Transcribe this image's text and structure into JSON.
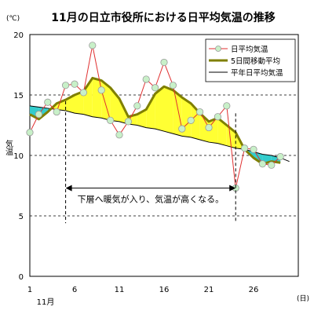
{
  "title": "11月の日立市役所における日平均気温の推移",
  "chart_data": {
    "type": "line",
    "unit_label": "(℃)",
    "ylabel": "気温",
    "xlabel": "",
    "x_unit_label": "(日)",
    "month_label": "11月",
    "ylim": [
      0,
      20
    ],
    "xlim": [
      1,
      30
    ],
    "yticks": [
      0,
      5,
      10,
      15,
      20
    ],
    "xticks": [
      1,
      6,
      11,
      16,
      21,
      26
    ],
    "grid": "horizontal dashed",
    "legend_position": "top-right",
    "x": [
      1,
      2,
      3,
      4,
      5,
      6,
      7,
      8,
      9,
      10,
      11,
      12,
      13,
      14,
      15,
      16,
      17,
      18,
      19,
      20,
      21,
      22,
      23,
      24,
      25,
      26,
      27,
      28,
      29,
      30
    ],
    "series": [
      {
        "name": "日平均気温",
        "color": "#e03030",
        "marker_fill": "#c8f0c8",
        "values": [
          11.9,
          13.4,
          14.4,
          13.6,
          15.8,
          15.9,
          15.2,
          19.1,
          15.4,
          12.9,
          11.7,
          12.8,
          14.1,
          16.3,
          15.6,
          17.7,
          15.8,
          12.2,
          12.9,
          13.6,
          12.3,
          13.2,
          14.1,
          7.3,
          10.6,
          10.5,
          9.3,
          9.2,
          9.9,
          null
        ]
      },
      {
        "name": "5日間移動平均",
        "color": "#7f7f00",
        "values": [
          13.4,
          13.0,
          13.6,
          14.3,
          14.6,
          15.0,
          15.3,
          16.4,
          16.2,
          15.6,
          14.7,
          13.2,
          13.4,
          13.8,
          15.1,
          15.7,
          15.4,
          14.8,
          14.3,
          13.5,
          12.8,
          13.1,
          12.5,
          11.9,
          10.5,
          9.8,
          9.3,
          9.5,
          9.4,
          null
        ]
      },
      {
        "name": "平年日平均気温",
        "color": "#000000",
        "values": [
          14.1,
          14.0,
          13.9,
          13.8,
          13.7,
          13.5,
          13.4,
          13.2,
          13.1,
          12.9,
          12.8,
          12.6,
          12.5,
          12.3,
          12.2,
          12.0,
          11.8,
          11.6,
          11.5,
          11.3,
          11.1,
          11.0,
          10.8,
          10.6,
          10.5,
          10.3,
          10.1,
          10.0,
          9.8,
          9.5
        ]
      }
    ],
    "fill_above_color": "#ffff33",
    "fill_below_color": "#33cccc",
    "annotation": {
      "text": "下層へ暖気が入り、気温が高くなる。",
      "from_x": 5,
      "to_x": 24,
      "y": 7.3
    }
  }
}
